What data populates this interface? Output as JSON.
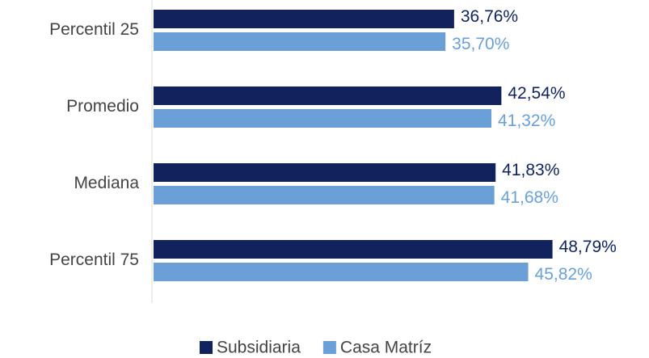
{
  "chart_data": {
    "type": "bar",
    "orientation": "horizontal",
    "categories": [
      "Percentil 25",
      "Promedio",
      "Mediana",
      "Percentil 75"
    ],
    "series": [
      {
        "name": "Subsidiaria",
        "color": "#12225c",
        "values": [
          36.76,
          42.54,
          41.83,
          48.79
        ],
        "value_labels": [
          "36,76%",
          "42,54%",
          "41,83%",
          "48,79%"
        ]
      },
      {
        "name": "Casa Matríz",
        "color": "#6a9fd8",
        "values": [
          35.7,
          41.32,
          41.68,
          45.82
        ],
        "value_labels": [
          "35,70%",
          "41,32%",
          "41,68%",
          "45,82%"
        ]
      }
    ],
    "xlim": [
      0,
      60
    ],
    "legend": "bottom"
  }
}
